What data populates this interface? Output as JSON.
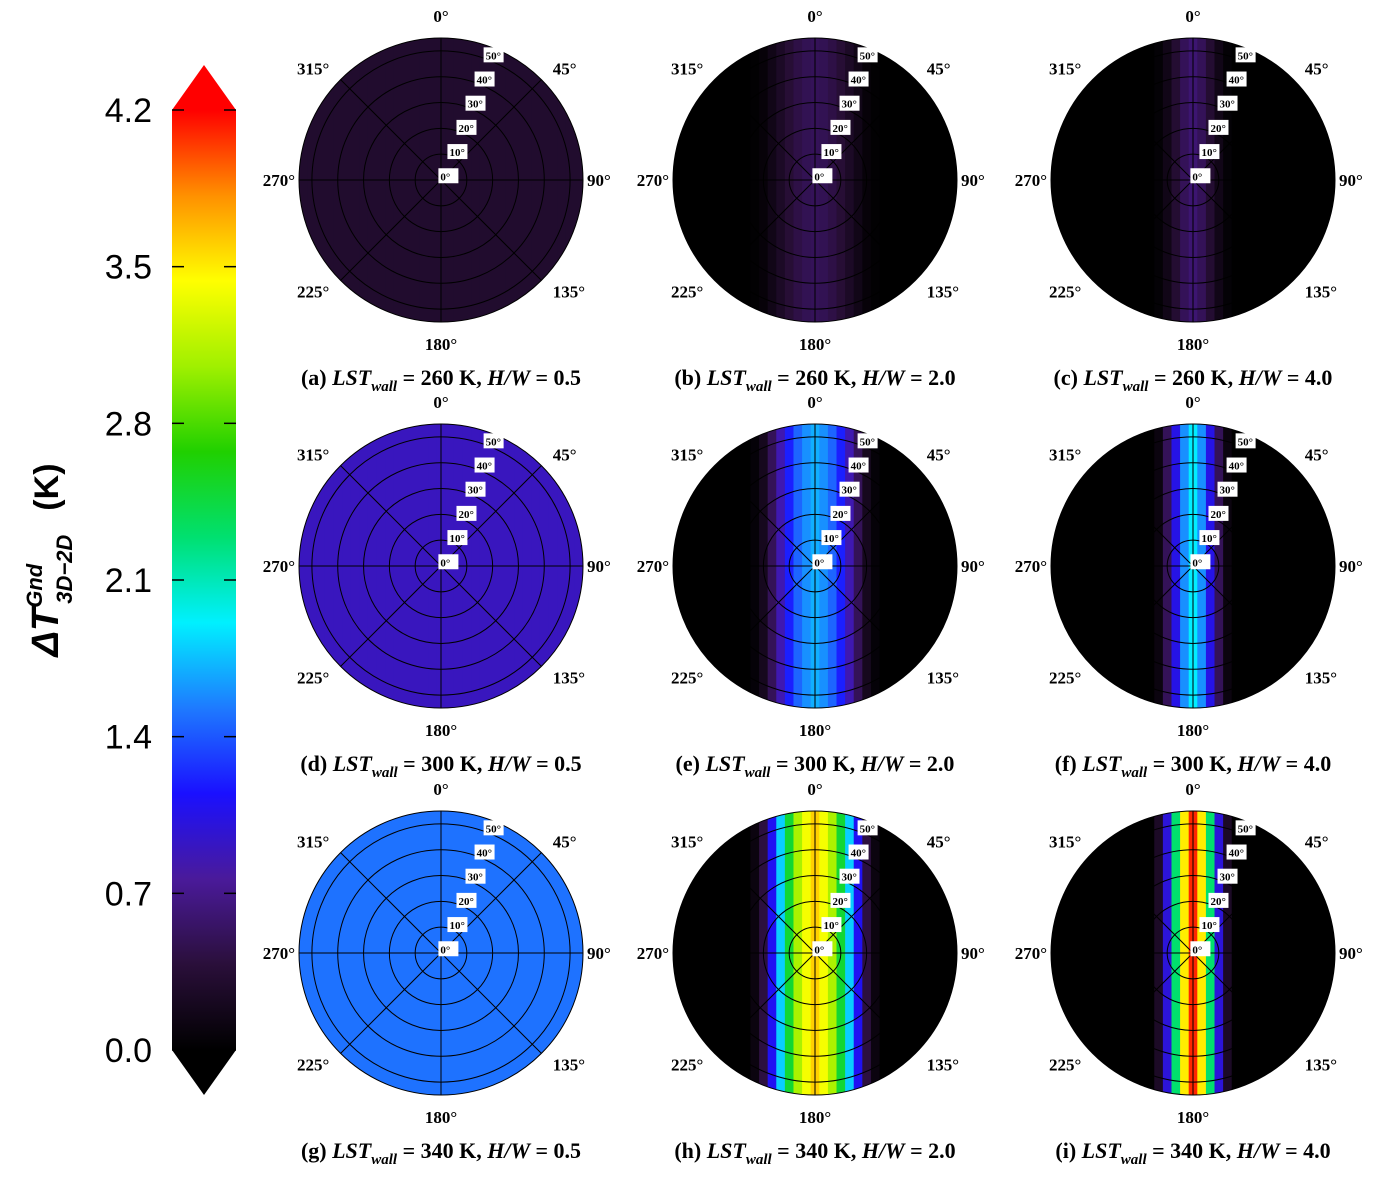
{
  "chart_data": {
    "type": "polar-heatmap",
    "colorbar": {
      "label": {
        "symbol": "ΔT",
        "sup": "Gnd",
        "sub": "3D−2D",
        "unit": "(K)"
      },
      "clim": [
        0,
        4.2
      ],
      "ticks": [
        {
          "value": 0,
          "label": "0.0"
        },
        0.7,
        1.4,
        2.1,
        2.8,
        3.5,
        4.2
      ],
      "colormap": [
        "#000000",
        "#2a0f3a",
        "#4a1a9a",
        "#1a10ff",
        "#1e7aff",
        "#00f0ff",
        "#00e070",
        "#20d000",
        "#a0f000",
        "#ffff00",
        "#ff9000",
        "#ff0000"
      ]
    },
    "angle_ticks": [
      {
        "value": 0,
        "label": "0°"
      },
      {
        "value": 45,
        "label": "45°"
      },
      {
        "value": 90,
        "label": "90°"
      },
      {
        "value": 135,
        "label": "135°"
      },
      {
        "value": 180,
        "label": "180°"
      },
      {
        "value": 225,
        "label": "225°"
      },
      {
        "value": 270,
        "label": "270°"
      },
      {
        "value": 315,
        "label": "315°"
      }
    ],
    "rlim": [
      0,
      55
    ],
    "rticks": [
      {
        "value": 0,
        "label": "0°"
      },
      {
        "value": 10,
        "label": "10°"
      },
      {
        "value": 20,
        "label": "20°"
      },
      {
        "value": 30,
        "label": "30°"
      },
      {
        "value": 40,
        "label": "40°"
      },
      {
        "value": 50,
        "label": "50°"
      }
    ],
    "grid": true,
    "panels": [
      {
        "caption": [
          "(a) ",
          "LST",
          "wall",
          " = 260 K, ",
          "H/W",
          " = 0.5"
        ],
        "values": [
          0.3,
          0.3,
          0.3,
          0.3,
          0.3,
          0.3,
          0.3,
          0.3,
          0.3,
          0.3,
          0.3,
          0.3,
          0.3,
          0.3,
          0.3,
          0.3,
          0.3,
          0.3,
          0.3,
          0.3,
          0.3,
          0.3,
          0.3,
          0.3,
          0.3,
          0.3,
          0.3,
          0.3,
          0.3,
          0.3,
          0.3,
          0.3,
          0.3
        ]
      },
      {
        "caption": [
          "(b) ",
          "LST",
          "wall",
          " = 260 K, ",
          "H/W",
          " = 2.0"
        ],
        "values": [
          0,
          0,
          0,
          0,
          0,
          0,
          0,
          0,
          0,
          0.02,
          0.06,
          0.15,
          0.25,
          0.35,
          0.43,
          0.48,
          0.5,
          0.48,
          0.43,
          0.35,
          0.25,
          0.15,
          0.06,
          0.02,
          0,
          0,
          0,
          0,
          0,
          0,
          0,
          0,
          0
        ]
      },
      {
        "caption": [
          "(c) ",
          "LST",
          "wall",
          " = 260 K, ",
          "H/W",
          " = 4.0"
        ],
        "values": [
          0,
          0,
          0,
          0,
          0,
          0,
          0,
          0,
          0,
          0,
          0,
          0,
          0.04,
          0.15,
          0.33,
          0.5,
          0.6,
          0.5,
          0.33,
          0.15,
          0.04,
          0,
          0,
          0,
          0,
          0,
          0,
          0,
          0,
          0,
          0,
          0,
          0
        ]
      },
      {
        "caption": [
          "(d) ",
          "LST",
          "wall",
          " = 300 K, ",
          "H/W",
          " = 0.5"
        ],
        "values": [
          0.9,
          0.9,
          0.9,
          0.9,
          0.9,
          0.9,
          0.9,
          0.9,
          0.9,
          0.9,
          0.9,
          0.9,
          0.9,
          0.9,
          0.9,
          0.9,
          0.9,
          0.9,
          0.9,
          0.9,
          0.9,
          0.9,
          0.9,
          0.9,
          0.9,
          0.9,
          0.9,
          0.9,
          0.9,
          0.9,
          0.9,
          0.9,
          0.9
        ]
      },
      {
        "caption": [
          "(e) ",
          "LST",
          "wall",
          " = 300 K, ",
          "H/W",
          " = 2.0"
        ],
        "values": [
          0,
          0,
          0,
          0,
          0,
          0,
          0,
          0,
          0,
          0.05,
          0.2,
          0.5,
          0.85,
          1.2,
          1.45,
          1.6,
          1.7,
          1.6,
          1.45,
          1.2,
          0.85,
          0.5,
          0.2,
          0.05,
          0,
          0,
          0,
          0,
          0,
          0,
          0,
          0,
          0
        ]
      },
      {
        "caption": [
          "(f) ",
          "LST",
          "wall",
          " = 300 K, ",
          "H/W",
          " = 4.0"
        ],
        "values": [
          0,
          0,
          0,
          0,
          0,
          0,
          0,
          0,
          0,
          0,
          0,
          0,
          0.1,
          0.5,
          1.05,
          1.6,
          1.9,
          1.6,
          1.05,
          0.5,
          0.1,
          0,
          0,
          0,
          0,
          0,
          0,
          0,
          0,
          0,
          0,
          0,
          0
        ]
      },
      {
        "caption": [
          "(g) ",
          "LST",
          "wall",
          " = 340 K, ",
          "H/W",
          " = 0.5"
        ],
        "values": [
          1.5,
          1.5,
          1.5,
          1.5,
          1.5,
          1.5,
          1.5,
          1.5,
          1.5,
          1.5,
          1.5,
          1.5,
          1.5,
          1.5,
          1.5,
          1.5,
          1.5,
          1.5,
          1.5,
          1.5,
          1.5,
          1.5,
          1.5,
          1.5,
          1.5,
          1.5,
          1.5,
          1.5,
          1.5,
          1.5,
          1.5,
          1.5,
          1.5
        ]
      },
      {
        "caption": [
          "(h) ",
          "LST",
          "wall",
          " = 340 K, ",
          "H/W",
          " = 2.0"
        ],
        "values": [
          0,
          0,
          0,
          0,
          0,
          0,
          0,
          0,
          0,
          0.1,
          0.4,
          1.1,
          1.8,
          2.5,
          3.1,
          3.4,
          3.6,
          3.4,
          3.1,
          2.5,
          1.8,
          1.1,
          0.4,
          0.1,
          0,
          0,
          0,
          0,
          0,
          0,
          0,
          0,
          0
        ]
      },
      {
        "caption": [
          "(i) ",
          "LST",
          "wall",
          " = 340 K, ",
          "H/W",
          " = 4.0"
        ],
        "values": [
          0,
          0,
          0,
          0,
          0,
          0,
          0,
          0,
          0,
          0,
          0,
          0,
          0.25,
          1.0,
          2.3,
          3.5,
          4.1,
          3.5,
          2.3,
          1.0,
          0.25,
          0,
          0,
          0,
          0,
          0,
          0,
          0,
          0,
          0,
          0,
          0,
          0
        ]
      }
    ]
  }
}
